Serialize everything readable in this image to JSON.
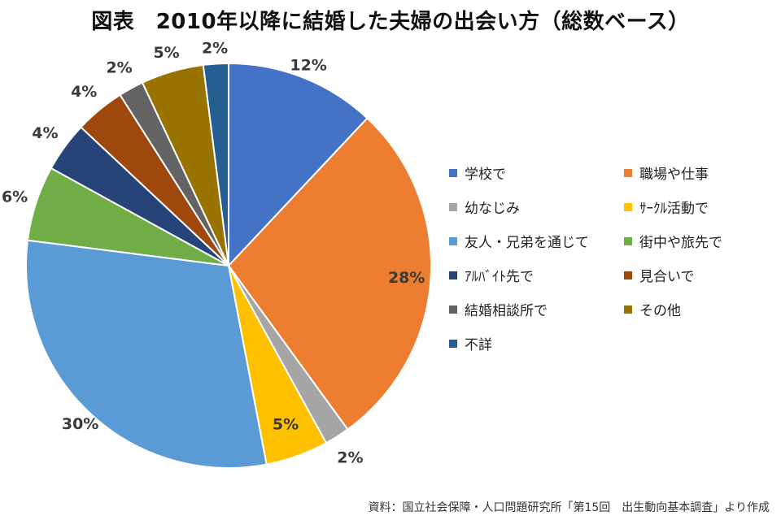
{
  "title": "図表　2010年以降に結婚した夫婦の出会い方（総数ベース）",
  "source": "資料：国立社会保障・人口問題研究所「第15回　出生動向基本調査」より作成",
  "chart_data": {
    "type": "pie",
    "title": "図表　2010年以降に結婚した夫婦の出会い方（総数ベース）",
    "legend_position": "right",
    "start": "12 o'clock, clockwise",
    "slices": [
      {
        "name": "学校で",
        "value": 12,
        "label": "12%",
        "color": "#4472C4"
      },
      {
        "name": "職場や仕事",
        "value": 28,
        "label": "28%",
        "color": "#ED7D31"
      },
      {
        "name": "幼なじみ",
        "value": 2,
        "label": "2%",
        "color": "#A5A5A5"
      },
      {
        "name": "ｻｰｸﾙ活動で",
        "value": 5,
        "label": "5%",
        "color": "#FFC000"
      },
      {
        "name": "友人・兄弟を通じて",
        "value": 30,
        "label": "30%",
        "color": "#5B9BD5"
      },
      {
        "name": "街中や旅先で",
        "value": 6,
        "label": "6%",
        "color": "#70AD47"
      },
      {
        "name": "ｱﾙﾊﾞｲﾄ先で",
        "value": 4,
        "label": "4%",
        "color": "#264478"
      },
      {
        "name": "見合いで",
        "value": 4,
        "label": "4%",
        "color": "#9E480E"
      },
      {
        "name": "結婚相談所で",
        "value": 2,
        "label": "2%",
        "color": "#636363"
      },
      {
        "name": "その他",
        "value": 5,
        "label": "5%",
        "color": "#997300"
      },
      {
        "name": "不詳",
        "value": 2,
        "label": "2%",
        "color": "#255E91"
      }
    ]
  }
}
